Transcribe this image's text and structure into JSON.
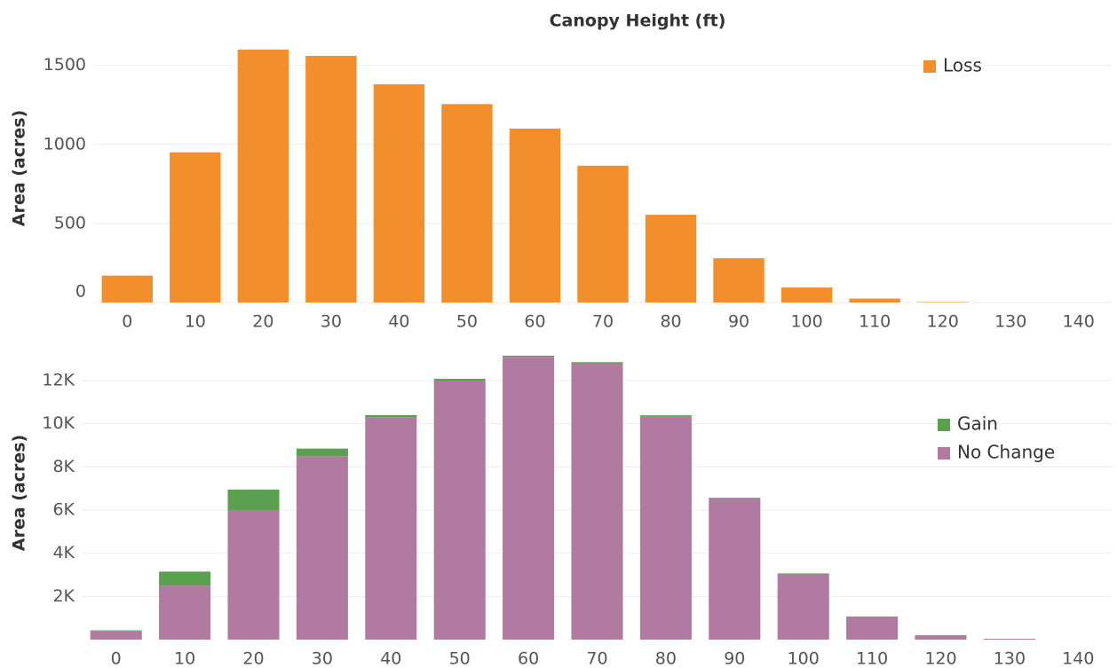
{
  "chart_data": [
    {
      "type": "bar",
      "title": "Canopy Height (ft)",
      "ylabel": "Area (acres)",
      "categories": [
        "0",
        "10",
        "20",
        "30",
        "40",
        "50",
        "60",
        "70",
        "80",
        "90",
        "100",
        "110",
        "120",
        "130",
        "140"
      ],
      "series": [
        {
          "name": "Loss",
          "color": "#f28e2b",
          "values": [
            170,
            950,
            1600,
            1560,
            1380,
            1255,
            1100,
            865,
            555,
            280,
            95,
            25,
            3,
            0,
            0
          ]
        }
      ],
      "ylim": [
        0,
        1700
      ],
      "yticks": [
        0,
        500,
        1000,
        1500
      ],
      "grid": true,
      "legend": "upper right"
    },
    {
      "type": "bar",
      "stacked": true,
      "ylabel": "Area (acres)",
      "categories": [
        "0",
        "10",
        "20",
        "30",
        "40",
        "50",
        "60",
        "70",
        "80",
        "90",
        "100",
        "110",
        "120",
        "130",
        "140"
      ],
      "series": [
        {
          "name": "No Change",
          "color": "#b07aa1",
          "values": [
            400,
            2500,
            6000,
            8500,
            10300,
            12000,
            13100,
            12800,
            10350,
            6550,
            3050,
            1050,
            200,
            40,
            0
          ]
        },
        {
          "name": "Gain",
          "color": "#59a14f",
          "values": [
            30,
            650,
            950,
            350,
            100,
            80,
            50,
            50,
            40,
            20,
            20,
            20,
            10,
            0,
            0
          ]
        }
      ],
      "ylim": [
        0,
        13600
      ],
      "yticks": [
        {
          "value": 2000,
          "label": "2K"
        },
        {
          "value": 4000,
          "label": "4K"
        },
        {
          "value": 6000,
          "label": "6K"
        },
        {
          "value": 8000,
          "label": "8K"
        },
        {
          "value": 10000,
          "label": "10K"
        },
        {
          "value": 12000,
          "label": "12K"
        }
      ],
      "grid": true,
      "legend": "upper right"
    }
  ]
}
